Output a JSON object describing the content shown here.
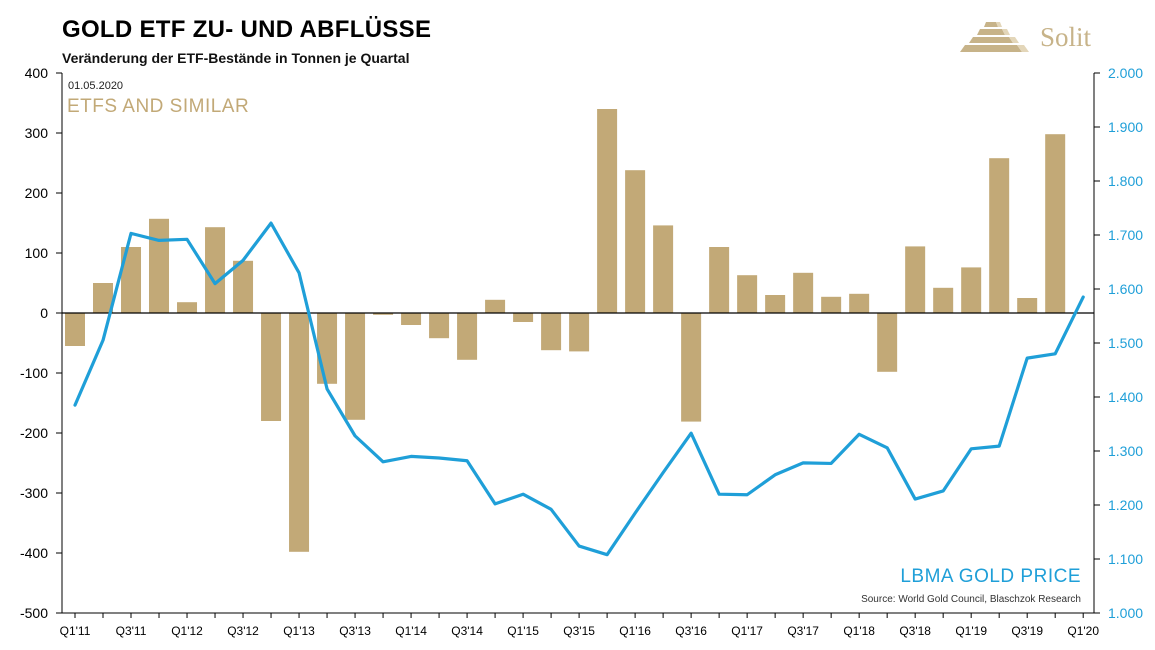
{
  "header": {
    "title": "GOLD ETF ZU- UND ABFLÜSSE",
    "subtitle": "Veränderung der ETF-Bestände in Tonnen je Quartal",
    "logo_text": "Solit"
  },
  "annotations": {
    "date": "01.05.2020",
    "bars_label": "ETFS AND SIMILAR",
    "line_label": "LBMA GOLD PRICE",
    "source": "Source: World Gold Council, Blaschzok Research"
  },
  "colors": {
    "bars": "#c2a977",
    "line": "#1f9fd8",
    "logo": "#c7b389"
  },
  "chart_data": {
    "type": "bar",
    "categories": [
      "Q1'11",
      "Q2'11",
      "Q3'11",
      "Q4'11",
      "Q1'12",
      "Q2'12",
      "Q3'12",
      "Q4'12",
      "Q1'13",
      "Q2'13",
      "Q3'13",
      "Q4'13",
      "Q1'14",
      "Q2'14",
      "Q3'14",
      "Q4'14",
      "Q1'15",
      "Q2'15",
      "Q3'15",
      "Q4'15",
      "Q1'16",
      "Q2'16",
      "Q3'16",
      "Q4'16",
      "Q1'17",
      "Q2'17",
      "Q3'17",
      "Q4'17",
      "Q1'18",
      "Q2'18",
      "Q3'18",
      "Q4'18",
      "Q1'19",
      "Q2'19",
      "Q3'19",
      "Q4'19",
      "Q1'20"
    ],
    "tick_labels": [
      "Q1'11",
      "",
      "Q3'11",
      "",
      "Q1'12",
      "",
      "Q3'12",
      "",
      "Q1'13",
      "",
      "Q3'13",
      "",
      "Q1'14",
      "",
      "Q3'14",
      "",
      "Q1'15",
      "",
      "Q3'15",
      "",
      "Q1'16",
      "",
      "Q3'16",
      "",
      "Q1'17",
      "",
      "Q3'17",
      "",
      "Q1'18",
      "",
      "Q3'18",
      "",
      "Q1'19",
      "",
      "Q3'19",
      "",
      "Q1'20"
    ],
    "series": [
      {
        "name": "ETFS AND SIMILAR",
        "type": "bar",
        "axis": "left",
        "values": [
          -55,
          50,
          110,
          157,
          18,
          143,
          87,
          -180,
          -398,
          -118,
          -178,
          -3,
          -20,
          -42,
          -78,
          22,
          -15,
          -62,
          -64,
          340,
          238,
          146,
          -181,
          110,
          63,
          30,
          67,
          27,
          32,
          -98,
          111,
          42,
          76,
          258,
          25,
          298,
          null
        ]
      },
      {
        "name": "LBMA GOLD PRICE",
        "type": "line",
        "axis": "right",
        "values": [
          1385,
          1505,
          1703,
          1690,
          1692,
          1610,
          1653,
          1722,
          1630,
          1415,
          1328,
          1280,
          1290,
          1287,
          1282,
          1202,
          1220,
          1192,
          1124,
          1108,
          1185,
          1260,
          1333,
          1220,
          1219,
          1256,
          1278,
          1277,
          1331,
          1306,
          1211,
          1226,
          1304,
          1309,
          1472,
          1480,
          1585
        ]
      }
    ],
    "y_left": {
      "min": -500,
      "max": 400,
      "ticks": [
        "400",
        "300",
        "200",
        "100",
        "0",
        "-100",
        "-200",
        "-300",
        "-400",
        "-500"
      ],
      "values": [
        400,
        300,
        200,
        100,
        0,
        -100,
        -200,
        -300,
        -400,
        -500
      ]
    },
    "y_right": {
      "min": 1000,
      "max": 2000,
      "ticks": [
        "2.000",
        "1.900",
        "1.800",
        "1.700",
        "1.600",
        "1.500",
        "1.400",
        "1.300",
        "1.200",
        "1.100",
        "1.000"
      ],
      "values": [
        2000,
        1900,
        1800,
        1700,
        1600,
        1500,
        1400,
        1300,
        1200,
        1100,
        1000
      ]
    },
    "grid": false,
    "title": "GOLD ETF ZU- UND ABFLÜSSE",
    "xlabel": "",
    "ylabel": ""
  }
}
